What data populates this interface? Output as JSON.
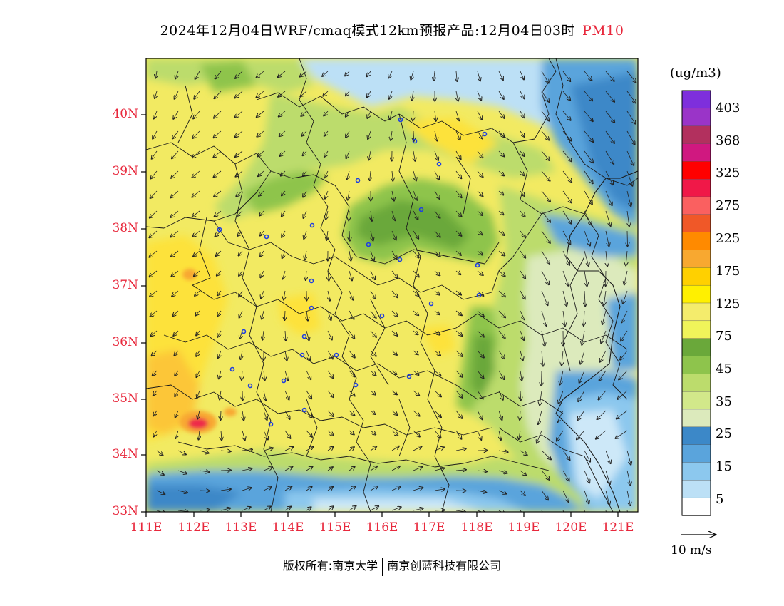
{
  "title": {
    "main": "2024年12月04日WRF/cmaq模式12km预报产品:12月04日03时",
    "variable": "PM10"
  },
  "axes": {
    "lat_labels": [
      "40N",
      "39N",
      "38N",
      "37N",
      "36N",
      "35N",
      "34N",
      "33N"
    ],
    "lon_labels": [
      "111E",
      "112E",
      "113E",
      "114E",
      "115E",
      "116E",
      "117E",
      "118E",
      "119E",
      "120E",
      "121E"
    ],
    "lat_range": [
      33,
      41
    ],
    "lon_range": [
      111,
      121.4
    ]
  },
  "legend": {
    "unit": "(ug/m3)",
    "labels": [
      "403",
      "368",
      "325",
      "275",
      "225",
      "175",
      "125",
      "75",
      "45",
      "35",
      "25",
      "15",
      "5"
    ],
    "colors": [
      "#7e2fdc",
      "#9a34c8",
      "#b2305e",
      "#d01880",
      "#ff0000",
      "#f01848",
      "#fa6060",
      "#f05828",
      "#ff8a00",
      "#f8a830",
      "#ffd000",
      "#fff000",
      "#f4ec6c",
      "#f0f45a",
      "#6aa83a",
      "#8ec44c",
      "#bcdc6c",
      "#d2e88a",
      "#dceabc",
      "#3c88c8",
      "#5aa4dc",
      "#8cc8ee",
      "#bce0f6",
      "#ffffff"
    ],
    "colors_order": "top-to-bottom"
  },
  "wind": {
    "reference_label": "10 m/s"
  },
  "footer": {
    "copyright": "版权所有:南京大学",
    "company": "南京创蓝科技有限公司"
  },
  "map_colors": {
    "background_yellow": "#f2ea62",
    "light_yellow": "#f6f08c",
    "dark_yellow": "#fde23a",
    "orange": "#fcc638",
    "red": "#ee2a4a",
    "green_dark": "#6aa83a",
    "green_mid": "#8ec44c",
    "green_light": "#bcdc6c",
    "pale_green": "#dceabc",
    "blue_dark": "#3c88c8",
    "blue_mid": "#5aa4dc",
    "blue_light": "#8cc8ee",
    "blue_pale": "#cde8f8"
  }
}
